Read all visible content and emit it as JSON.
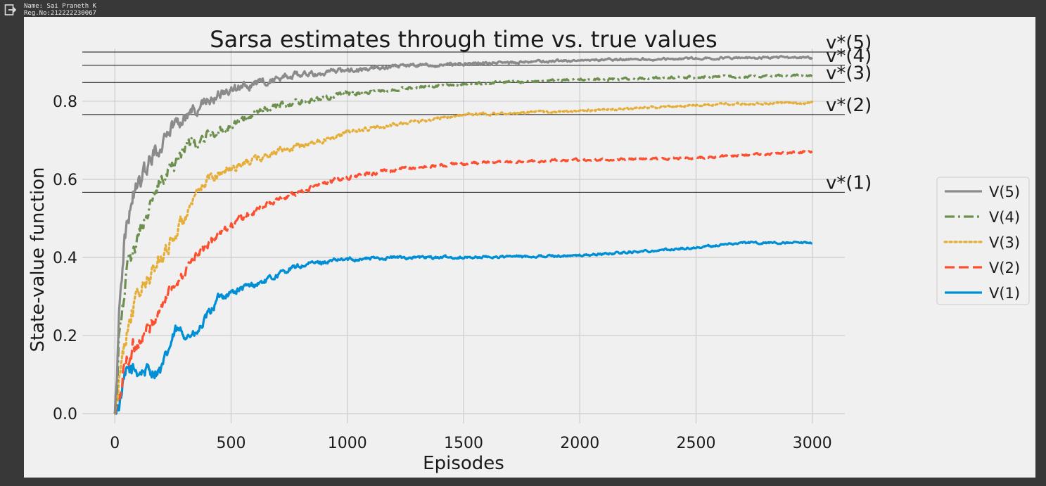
{
  "output_header": {
    "name_line": "Name: Sai Praneth K",
    "reg_line": "Reg.No:212222230067",
    "icon": "output-arrow-icon"
  },
  "chart_data": {
    "type": "line",
    "title": "Sarsa estimates through time vs. true values",
    "xlabel": "Episodes",
    "ylabel": "State-value function",
    "xlim": [
      -140,
      3140
    ],
    "ylim": [
      -0.025,
      0.935
    ],
    "xticks": [
      0,
      500,
      1000,
      1500,
      2000,
      2500,
      3000
    ],
    "yticks": [
      0.0,
      0.2,
      0.4,
      0.6,
      0.8
    ],
    "ytick_labels": [
      "0.0",
      "0.2",
      "0.4",
      "0.6",
      "0.8"
    ],
    "xtick_labels": [
      "0",
      "500",
      "1000",
      "1500",
      "2000",
      "2500",
      "3000"
    ],
    "grid": true,
    "legend_position": "right, outside axes",
    "true_values": [
      {
        "label": "v*(1)",
        "value": 0.567
      },
      {
        "label": "v*(2)",
        "value": 0.766
      },
      {
        "label": "v*(3)",
        "value": 0.848
      },
      {
        "label": "v*(4)",
        "value": 0.892
      },
      {
        "label": "v*(5)",
        "value": 0.926
      }
    ],
    "series": [
      {
        "name": "V(5)",
        "color": "#8b8b8b",
        "dash": "solid",
        "jitter": 0.022,
        "points": [
          [
            0,
            0
          ],
          [
            10,
            0.12
          ],
          [
            20,
            0.3
          ],
          [
            40,
            0.45
          ],
          [
            80,
            0.56
          ],
          [
            150,
            0.65
          ],
          [
            250,
            0.74
          ],
          [
            400,
            0.8
          ],
          [
            500,
            0.83
          ],
          [
            700,
            0.86
          ],
          [
            1000,
            0.88
          ],
          [
            1200,
            0.89
          ],
          [
            1500,
            0.895
          ],
          [
            2000,
            0.905
          ],
          [
            2500,
            0.91
          ],
          [
            3000,
            0.912
          ]
        ]
      },
      {
        "name": "V(4)",
        "color": "#6d904f",
        "dash": "dashdot",
        "jitter": 0.02,
        "points": [
          [
            0,
            0
          ],
          [
            10,
            0.06
          ],
          [
            20,
            0.2
          ],
          [
            50,
            0.35
          ],
          [
            100,
            0.46
          ],
          [
            200,
            0.6
          ],
          [
            300,
            0.68
          ],
          [
            500,
            0.74
          ],
          [
            700,
            0.79
          ],
          [
            1000,
            0.82
          ],
          [
            1200,
            0.83
          ],
          [
            1500,
            0.845
          ],
          [
            2000,
            0.855
          ],
          [
            2500,
            0.862
          ],
          [
            3000,
            0.866
          ]
        ]
      },
      {
        "name": "V(3)",
        "color": "#e5ae38",
        "dash": "dotted",
        "jitter": 0.02,
        "points": [
          [
            0,
            0
          ],
          [
            15,
            0.04
          ],
          [
            30,
            0.15
          ],
          [
            60,
            0.25
          ],
          [
            100,
            0.3
          ],
          [
            200,
            0.4
          ],
          [
            300,
            0.5
          ],
          [
            400,
            0.6
          ],
          [
            500,
            0.63
          ],
          [
            700,
            0.67
          ],
          [
            1000,
            0.72
          ],
          [
            1200,
            0.74
          ],
          [
            1500,
            0.765
          ],
          [
            2000,
            0.775
          ],
          [
            2500,
            0.79
          ],
          [
            3000,
            0.797
          ]
        ]
      },
      {
        "name": "V(2)",
        "color": "#fc4f30",
        "dash": "dashed",
        "jitter": 0.018,
        "points": [
          [
            0,
            0
          ],
          [
            20,
            0.03
          ],
          [
            40,
            0.12
          ],
          [
            80,
            0.17
          ],
          [
            150,
            0.22
          ],
          [
            250,
            0.33
          ],
          [
            350,
            0.4
          ],
          [
            450,
            0.46
          ],
          [
            550,
            0.5
          ],
          [
            700,
            0.55
          ],
          [
            900,
            0.59
          ],
          [
            1000,
            0.605
          ],
          [
            1200,
            0.625
          ],
          [
            1500,
            0.64
          ],
          [
            2000,
            0.65
          ],
          [
            2500,
            0.655
          ],
          [
            3000,
            0.672
          ]
        ]
      },
      {
        "name": "V(1)",
        "color": "#008fd5",
        "dash": "solid",
        "jitter": 0.016,
        "points": [
          [
            0,
            0
          ],
          [
            20,
            0.03
          ],
          [
            40,
            0.08
          ],
          [
            60,
            0.11
          ],
          [
            150,
            0.11
          ],
          [
            200,
            0.11
          ],
          [
            230,
            0.16
          ],
          [
            260,
            0.21
          ],
          [
            350,
            0.2
          ],
          [
            400,
            0.25
          ],
          [
            450,
            0.3
          ],
          [
            550,
            0.32
          ],
          [
            650,
            0.34
          ],
          [
            750,
            0.37
          ],
          [
            850,
            0.385
          ],
          [
            1000,
            0.395
          ],
          [
            1200,
            0.4
          ],
          [
            1500,
            0.4
          ],
          [
            2000,
            0.405
          ],
          [
            2500,
            0.425
          ],
          [
            2700,
            0.438
          ],
          [
            3000,
            0.436
          ]
        ]
      }
    ]
  }
}
